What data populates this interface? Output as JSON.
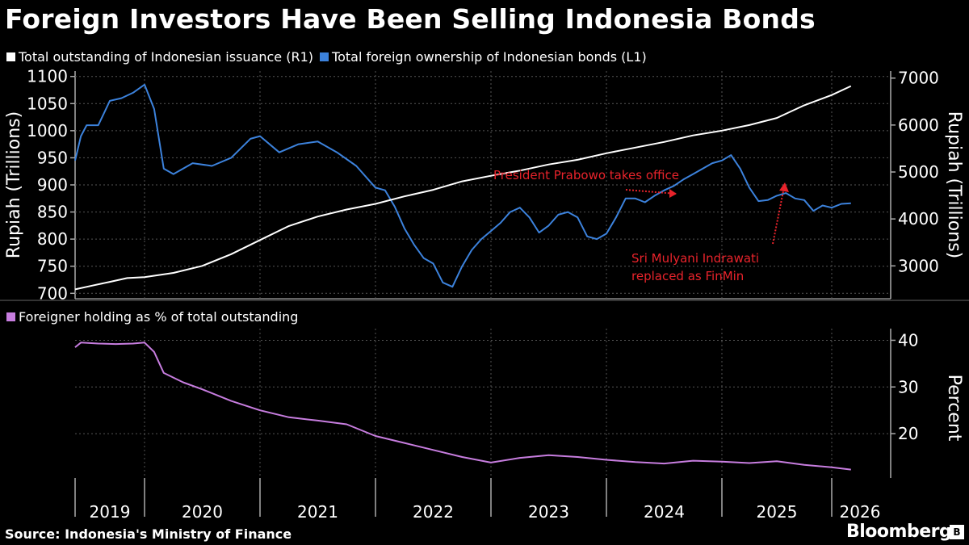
{
  "title": "Foreign Investors Have Been Selling Indonesia Bonds",
  "source": "Source: Indonesia's Ministry of Finance",
  "brand": "Bloomberg",
  "colors": {
    "outstanding": "#ffffff",
    "foreign": "#3c82dc",
    "percent": "#c77ddf",
    "annotation": "#e8232b"
  },
  "chart_data": [
    {
      "type": "line",
      "title": "",
      "legend_placement": "top-left",
      "grid": true,
      "ylabel_left": "Rupiah (Trillions)",
      "ylabel_right": "Rupiah (Trillions)",
      "ylim_left": [
        690,
        1110
      ],
      "yticks_left": [
        700,
        750,
        800,
        850,
        900,
        950,
        1000,
        1050,
        1100
      ],
      "ylim_right": [
        2300,
        7150
      ],
      "yticks_right": [
        3000,
        4000,
        5000,
        6000,
        7000
      ],
      "series": [
        {
          "name": "Total outstanding of Indonesian issuance (R1)",
          "axis": "right",
          "x": [
            "2019-01",
            "2019-04",
            "2019-07",
            "2019-10",
            "2020-01",
            "2020-04",
            "2020-07",
            "2020-10",
            "2021-01",
            "2021-04",
            "2021-07",
            "2021-10",
            "2022-01",
            "2022-04",
            "2022-07",
            "2022-10",
            "2023-01",
            "2023-04",
            "2023-07",
            "2023-10",
            "2024-01",
            "2024-04",
            "2024-07",
            "2024-10",
            "2025-01",
            "2025-04",
            "2025-07",
            "2025-10",
            "2026-01",
            "2026-03"
          ],
          "values": [
            2500,
            2580,
            2660,
            2740,
            2760,
            2850,
            3000,
            3250,
            3550,
            3850,
            4050,
            4200,
            4320,
            4480,
            4620,
            4800,
            4920,
            5030,
            5160,
            5260,
            5400,
            5520,
            5640,
            5780,
            5880,
            6000,
            6150,
            6420,
            6640,
            6830
          ]
        },
        {
          "name": "Total foreign ownership of Indonesian bonds (L1)",
          "axis": "left",
          "x": [
            "2019-01",
            "2019-02",
            "2019-03",
            "2019-05",
            "2019-07",
            "2019-09",
            "2019-11",
            "2020-01",
            "2020-02",
            "2020-03",
            "2020-04",
            "2020-06",
            "2020-08",
            "2020-10",
            "2020-12",
            "2021-01",
            "2021-03",
            "2021-05",
            "2021-07",
            "2021-09",
            "2021-11",
            "2022-01",
            "2022-02",
            "2022-03",
            "2022-04",
            "2022-05",
            "2022-06",
            "2022-07",
            "2022-08",
            "2022-09",
            "2022-10",
            "2022-11",
            "2022-12",
            "2023-01",
            "2023-02",
            "2023-03",
            "2023-04",
            "2023-05",
            "2023-06",
            "2023-07",
            "2023-08",
            "2023-09",
            "2023-10",
            "2023-11",
            "2023-12",
            "2024-01",
            "2024-02",
            "2024-03",
            "2024-04",
            "2024-05",
            "2024-06",
            "2024-07",
            "2024-08",
            "2024-09",
            "2024-10",
            "2024-11",
            "2024-12",
            "2025-01",
            "2025-02",
            "2025-03",
            "2025-04",
            "2025-05",
            "2025-06",
            "2025-07",
            "2025-08",
            "2025-09",
            "2025-10",
            "2025-11",
            "2025-12",
            "2026-01",
            "2026-02",
            "2026-03"
          ],
          "values": [
            945,
            990,
            1010,
            1010,
            1055,
            1060,
            1070,
            1085,
            1040,
            930,
            920,
            940,
            935,
            950,
            985,
            990,
            960,
            975,
            980,
            960,
            935,
            895,
            890,
            860,
            820,
            790,
            765,
            755,
            720,
            712,
            750,
            780,
            800,
            815,
            830,
            850,
            858,
            840,
            812,
            825,
            845,
            850,
            840,
            805,
            800,
            810,
            840,
            875,
            875,
            868,
            880,
            890,
            898,
            910,
            920,
            930,
            940,
            945,
            955,
            930,
            895,
            870,
            872,
            880,
            885,
            875,
            872,
            852,
            862,
            858,
            865,
            866
          ]
        }
      ]
    },
    {
      "type": "line",
      "title": "",
      "legend_placement": "top-left",
      "grid": true,
      "ylabel_right": "Percent",
      "ylim": [
        10.5,
        42.5
      ],
      "yticks": [
        20,
        30,
        40
      ],
      "series": [
        {
          "name": "Foreigner holding as % of total outstanding",
          "x": [
            "2019-01",
            "2019-02",
            "2019-05",
            "2019-08",
            "2019-11",
            "2020-01",
            "2020-02",
            "2020-03",
            "2020-05",
            "2020-07",
            "2020-10",
            "2021-01",
            "2021-04",
            "2021-07",
            "2021-10",
            "2022-01",
            "2022-04",
            "2022-07",
            "2022-10",
            "2023-01",
            "2023-04",
            "2023-07",
            "2023-10",
            "2024-01",
            "2024-04",
            "2024-07",
            "2024-10",
            "2025-01",
            "2025-04",
            "2025-07",
            "2025-10",
            "2026-01",
            "2026-03"
          ],
          "values": [
            38.5,
            39.5,
            39.3,
            39.2,
            39.3,
            39.5,
            37.5,
            33,
            31,
            29.5,
            27,
            25,
            23.5,
            22.8,
            22,
            19.5,
            18,
            16.5,
            15,
            13.8,
            14.8,
            15.4,
            15,
            14.4,
            13.9,
            13.6,
            14.2,
            14,
            13.7,
            14.1,
            13.3,
            12.8,
            12.3
          ]
        }
      ]
    }
  ],
  "x_axis_labels": [
    "2019",
    "2020",
    "2021",
    "2022",
    "2023",
    "2024",
    "2025",
    "2026"
  ],
  "annotations": [
    {
      "text": "President Prabowo takes office"
    },
    {
      "text": "Sri Mulyani Indrawati"
    },
    {
      "text": "replaced as FinMin"
    }
  ],
  "legend": {
    "outstanding": "Total outstanding of Indonesian issuance (R1)",
    "foreign": "Total foreign ownership of Indonesian bonds (L1)",
    "percent": "Foreigner holding as % of total outstanding"
  }
}
